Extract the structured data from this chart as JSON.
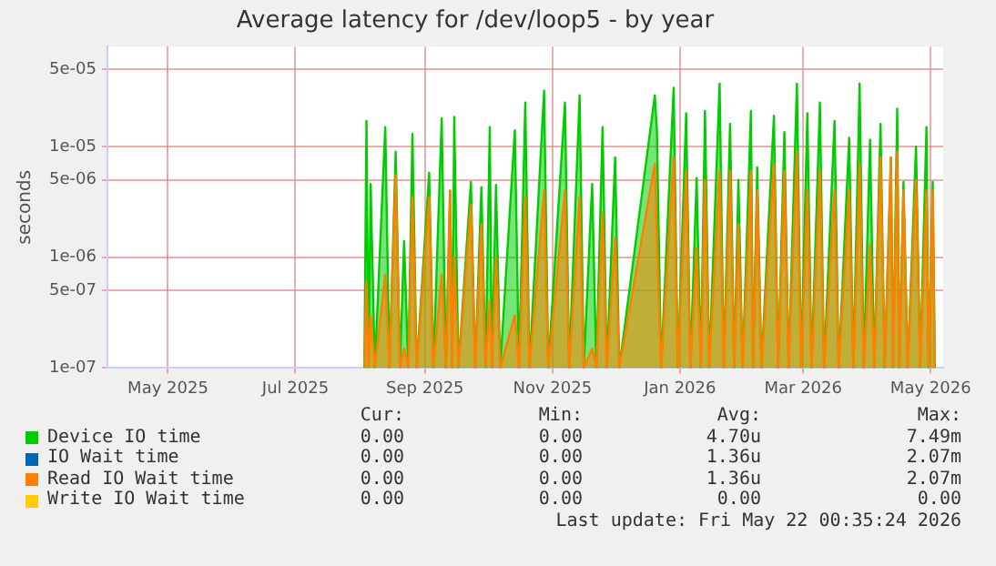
{
  "chart_data": {
    "type": "area",
    "title": "Average latency for /dev/loop5 - by year",
    "ylabel": "seconds",
    "log": "y",
    "grid": true,
    "legend": "bottom",
    "xlim": [
      "2025-04-02",
      "2026-05-07"
    ],
    "xticks": [
      {
        "value": "2025-05-01",
        "label": "May 2025"
      },
      {
        "value": "2025-07-01",
        "label": "Jul 2025"
      },
      {
        "value": "2025-09-01",
        "label": "Sep 2025"
      },
      {
        "value": "2025-11-01",
        "label": "Nov 2025"
      },
      {
        "value": "2026-01-01",
        "label": "Jan 2026"
      },
      {
        "value": "2026-03-01",
        "label": "Mar 2026"
      },
      {
        "value": "2026-05-01",
        "label": "May 2026"
      }
    ],
    "ylim": [
      1e-07,
      8e-05
    ],
    "yticks": [
      {
        "value": 1e-07,
        "label": "1e-07"
      },
      {
        "value": 5e-07,
        "label": "5e-07"
      },
      {
        "value": 1e-06,
        "label": "1e-06"
      },
      {
        "value": 5e-06,
        "label": "5e-06"
      },
      {
        "value": 1e-05,
        "label": "1e-05"
      },
      {
        "value": 5e-05,
        "label": "5e-05"
      }
    ],
    "x": [
      "2025-08-03",
      "2025-08-04",
      "2025-08-05",
      "2025-08-06",
      "2025-08-08",
      "2025-08-13",
      "2025-08-15",
      "2025-08-18",
      "2025-08-20",
      "2025-08-22",
      "2025-08-24",
      "2025-08-26",
      "2025-08-28",
      "2025-09-03",
      "2025-09-05",
      "2025-09-09",
      "2025-09-11",
      "2025-09-13",
      "2025-09-14",
      "2025-09-15",
      "2025-09-17",
      "2025-09-23",
      "2025-09-25",
      "2025-09-28",
      "2025-09-30",
      "2025-10-02",
      "2025-10-03",
      "2025-10-05",
      "2025-10-07",
      "2025-10-14",
      "2025-10-16",
      "2025-10-19",
      "2025-10-21",
      "2025-10-28",
      "2025-10-30",
      "2025-11-07",
      "2025-11-09",
      "2025-11-14",
      "2025-11-16",
      "2025-11-20",
      "2025-11-22",
      "2025-11-25",
      "2025-11-27",
      "2025-12-01",
      "2025-12-03",
      "2025-12-20",
      "2025-12-21",
      "2025-12-23",
      "2025-12-29",
      "2025-12-31",
      "2026-01-04",
      "2026-01-06",
      "2026-01-09",
      "2026-01-11",
      "2026-01-13",
      "2026-01-15",
      "2026-01-20",
      "2026-01-22",
      "2026-01-25",
      "2026-01-27",
      "2026-01-29",
      "2026-01-31",
      "2026-02-04",
      "2026-02-05",
      "2026-02-07",
      "2026-02-09",
      "2026-02-15",
      "2026-02-17",
      "2026-02-20",
      "2026-02-22",
      "2026-02-26",
      "2026-02-28",
      "2026-03-03",
      "2026-03-05",
      "2026-03-09",
      "2026-03-11",
      "2026-03-16",
      "2026-03-18",
      "2026-03-23",
      "2026-03-25",
      "2026-03-28",
      "2026-03-30",
      "2026-04-02",
      "2026-04-04",
      "2026-04-07",
      "2026-04-09",
      "2026-04-12",
      "2026-04-13",
      "2026-04-15",
      "2026-04-16",
      "2026-04-18",
      "2026-04-20",
      "2026-04-24",
      "2026-04-26",
      "2026-04-29",
      "2026-04-30",
      "2026-05-02",
      "2026-05-03"
    ],
    "series": [
      {
        "name": "Device IO time",
        "color": "#00cc00",
        "values": [
          1e-07,
          1.7e-05,
          1e-07,
          4.6e-06,
          1e-07,
          1.5e-05,
          1e-07,
          9e-06,
          1e-07,
          1.4e-06,
          1e-07,
          1.3e-05,
          1e-07,
          5.8e-06,
          1e-07,
          1.8e-05,
          1e-07,
          4e-06,
          1e-07,
          1.85e-05,
          1e-07,
          4.8e-06,
          1e-07,
          4.3e-06,
          1e-07,
          1.5e-05,
          1e-07,
          4.5e-06,
          1e-07,
          1.4e-05,
          1e-07,
          2.5e-05,
          1e-07,
          3.2e-05,
          1e-07,
          2.5e-05,
          1e-07,
          2.9e-05,
          1e-07,
          4.6e-06,
          1e-07,
          1.5e-05,
          1e-07,
          8e-06,
          1e-07,
          2.9e-05,
          1.4e-05,
          1e-07,
          3.4e-05,
          1e-07,
          2e-05,
          1e-07,
          5.2e-06,
          1e-07,
          2.1e-05,
          1e-07,
          3.7e-05,
          1e-07,
          1.6e-05,
          1e-07,
          5e-06,
          1e-07,
          2.1e-05,
          1e-07,
          6.5e-06,
          1e-07,
          1.9e-05,
          1e-07,
          1.35e-05,
          1e-07,
          3.7e-05,
          1e-07,
          2e-05,
          1e-07,
          2.5e-05,
          1e-07,
          1.7e-05,
          1e-07,
          1.2e-05,
          1e-07,
          3.7e-05,
          1e-07,
          1.15e-05,
          1e-07,
          1.6e-05,
          1e-07,
          8e-06,
          1e-07,
          2.2e-05,
          1e-07,
          4.8e-06,
          1e-07,
          1e-05,
          1e-07,
          1.5e-05,
          1e-07,
          4.8e-06,
          1e-07
        ]
      },
      {
        "name": "IO Wait time",
        "color": "#0066b3",
        "values": [
          null,
          null,
          null,
          null,
          null,
          null,
          null,
          null,
          null,
          null,
          null,
          null,
          null,
          null,
          null,
          null,
          null,
          null,
          null,
          null,
          null,
          null,
          null,
          null,
          null,
          null,
          null,
          null,
          null,
          null,
          null,
          null,
          null,
          null,
          null,
          null,
          null,
          null,
          null,
          null,
          null,
          null,
          null,
          null,
          null,
          null,
          null,
          null,
          null,
          null,
          null,
          null,
          null,
          null,
          null,
          null,
          null,
          null,
          null,
          null,
          null,
          null,
          null,
          null,
          null,
          null,
          null,
          null,
          null,
          null,
          null,
          null,
          null,
          null,
          null,
          null,
          null,
          null,
          null,
          null,
          null,
          null,
          null,
          null,
          null,
          null,
          null,
          null,
          null,
          null,
          null,
          null,
          null,
          null,
          null,
          null,
          null,
          null
        ]
      },
      {
        "name": "Read IO Wait time",
        "color": "#ff8000",
        "values": [
          1e-07,
          6e-07,
          1e-07,
          3e-07,
          1e-07,
          7e-07,
          1e-07,
          5.5e-06,
          1e-07,
          1.5e-07,
          1e-07,
          3.5e-06,
          1e-07,
          3.5e-06,
          1e-07,
          7e-07,
          1e-07,
          4e-06,
          1e-07,
          1e-06,
          1e-07,
          3e-06,
          1e-07,
          2e-06,
          1e-07,
          4e-07,
          1e-07,
          1e-06,
          1e-07,
          3e-07,
          1e-07,
          3.5e-06,
          1e-07,
          4e-06,
          1e-07,
          4e-06,
          1e-07,
          3.5e-06,
          1e-07,
          1.5e-07,
          1e-07,
          2.5e-06,
          1e-07,
          1.5e-06,
          1e-07,
          7e-06,
          1.5e-06,
          1e-07,
          8e-06,
          1e-07,
          6e-06,
          1e-07,
          1.2e-06,
          1e-07,
          5e-06,
          1e-07,
          6e-06,
          1e-07,
          6e-06,
          1e-07,
          2e-06,
          1e-07,
          6e-06,
          1e-07,
          4e-06,
          1e-07,
          7e-06,
          1e-07,
          6e-06,
          1e-07,
          9e-06,
          1e-07,
          4e-06,
          1e-07,
          6e-06,
          1e-07,
          4e-06,
          1e-07,
          4e-06,
          1e-07,
          7e-06,
          1e-07,
          1.3e-06,
          1e-07,
          8e-06,
          1e-07,
          8e-06,
          1e-07,
          9e-06,
          1e-07,
          4e-06,
          1e-07,
          5e-06,
          1e-07,
          4e-06,
          1e-07,
          4e-06,
          1e-07
        ]
      },
      {
        "name": "Write IO Wait time",
        "color": "#ffcc00",
        "values": [
          null,
          null,
          null,
          null,
          null,
          null,
          null,
          null,
          null,
          null,
          null,
          null,
          null,
          null,
          null,
          null,
          null,
          null,
          null,
          null,
          null,
          null,
          null,
          null,
          null,
          null,
          null,
          null,
          null,
          null,
          null,
          null,
          null,
          null,
          null,
          null,
          null,
          null,
          null,
          null,
          null,
          null,
          null,
          null,
          null,
          null,
          null,
          null,
          null,
          null,
          null,
          null,
          null,
          null,
          null,
          null,
          null,
          null,
          null,
          null,
          null,
          null,
          null,
          null,
          null,
          null,
          null,
          null,
          null,
          null,
          null,
          null,
          null,
          null,
          null,
          null,
          null,
          null,
          null,
          null,
          null,
          null,
          null,
          null,
          null,
          null,
          null,
          null,
          null,
          null,
          null,
          null,
          null,
          null,
          null,
          null,
          null,
          null
        ]
      }
    ],
    "annotations": [
      "Cur:",
      "Min:",
      "Avg:",
      "Max:",
      "0.00",
      "0.00",
      "4.70u",
      "7.49m",
      "0.00",
      "0.00",
      "1.36u",
      "2.07m",
      "0.00",
      "0.00",
      "1.36u",
      "2.07m",
      "0.00",
      "0.00",
      "0.00",
      "0.00",
      "Last update: Fri May 22 00:35:24 2026"
    ]
  }
}
